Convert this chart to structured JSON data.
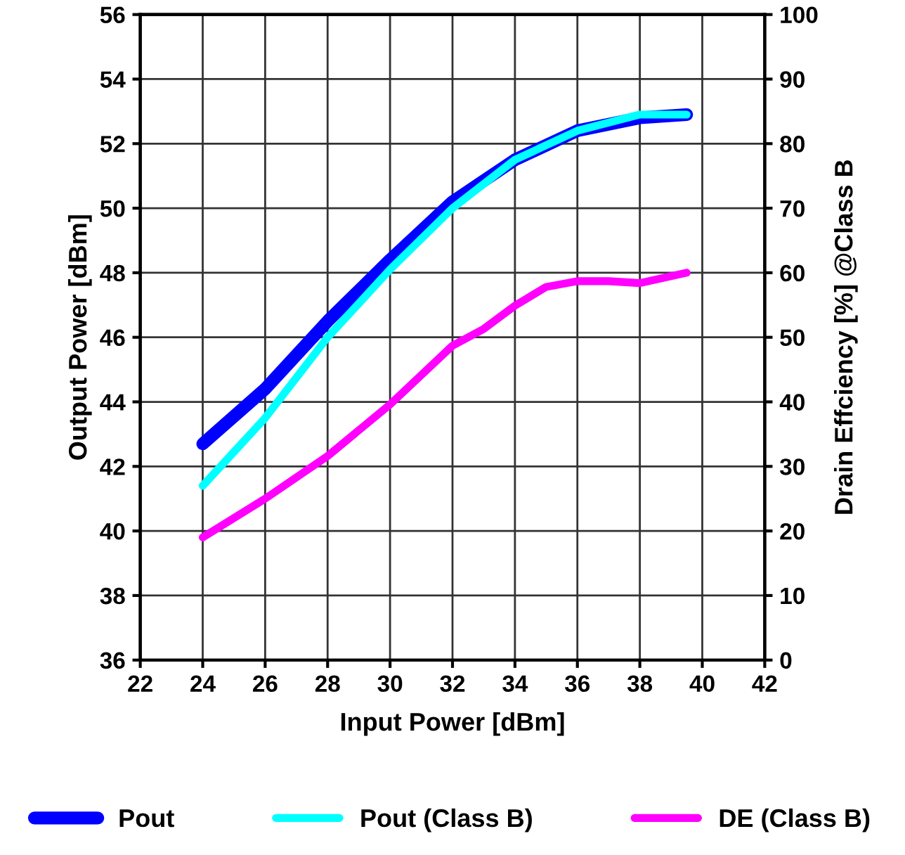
{
  "chart_data": {
    "type": "line",
    "xlabel": "Input Power [dBm]",
    "ylabel": "Output Power [dBm]",
    "y2label": "Drain Effciency [%] @Class B",
    "xlim": [
      22,
      42
    ],
    "xticks": [
      22,
      24,
      26,
      28,
      30,
      32,
      34,
      36,
      38,
      40,
      42
    ],
    "ylim": [
      36,
      56
    ],
    "yticks": [
      36,
      38,
      40,
      42,
      44,
      46,
      48,
      50,
      52,
      54,
      56
    ],
    "y2lim": [
      0,
      100
    ],
    "y2ticks": [
      0,
      10,
      20,
      30,
      40,
      50,
      60,
      70,
      80,
      90,
      100
    ],
    "grid": true,
    "legend": "bottom",
    "marker": "none",
    "line_style": "solid",
    "series": [
      {
        "name": "Pout",
        "color": "#0000ff",
        "x": [
          24,
          26,
          28,
          30,
          32,
          34,
          36,
          38,
          39.5
        ],
        "values": [
          42.7,
          44.4,
          46.5,
          48.4,
          50.2,
          51.5,
          52.4,
          52.8,
          52.9
        ]
      },
      {
        "name": "Pout (Class B)",
        "color": "#00ffff",
        "x": [
          24,
          26,
          28,
          30,
          32,
          34,
          36,
          38,
          39.5
        ],
        "values": [
          41.4,
          43.5,
          46.0,
          48.1,
          50.0,
          51.5,
          52.4,
          52.9,
          52.9
        ]
      },
      {
        "name": "DE (Class B)",
        "color": "#ff00ff",
        "axis": "y2",
        "x": [
          24,
          26,
          28,
          30,
          32,
          33,
          34,
          35,
          36,
          37,
          38,
          39.5
        ],
        "values": [
          19,
          25,
          31.6,
          39.6,
          48.7,
          51.3,
          54.9,
          57.8,
          58.7,
          58.7,
          58.4,
          60
        ]
      }
    ]
  }
}
